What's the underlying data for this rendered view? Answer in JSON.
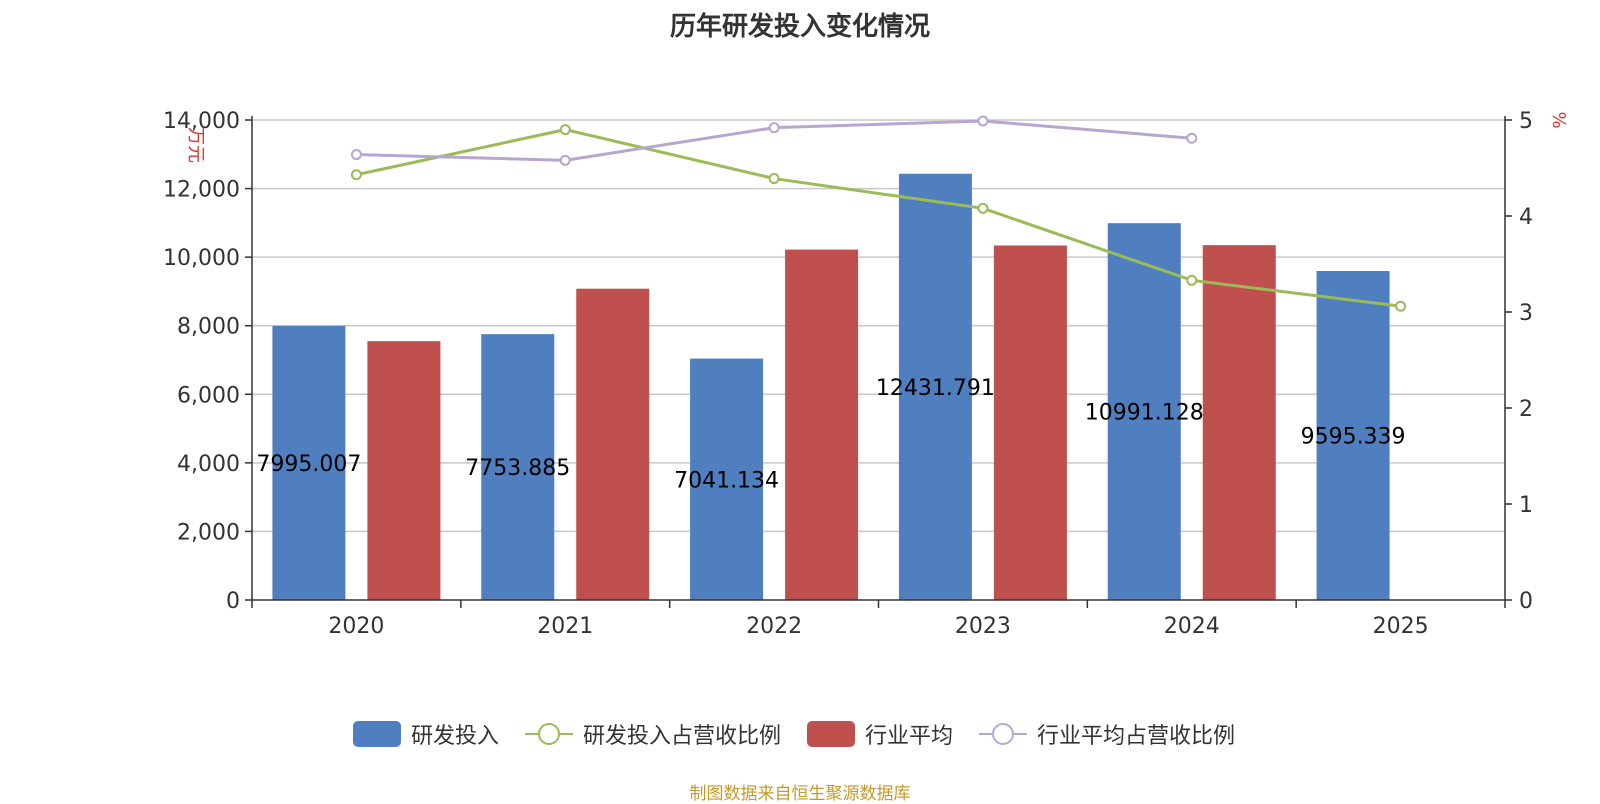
{
  "chart_data": {
    "type": "bar",
    "title": "历年研发投入变化情况",
    "categories": [
      "2020",
      "2021",
      "2022",
      "2023",
      "2024",
      "2025"
    ],
    "y_left": {
      "label": "万元",
      "min": 0,
      "max": 14000,
      "ticks": [
        "0",
        "2,000",
        "4,000",
        "6,000",
        "8,000",
        "10,000",
        "12,000",
        "14,000"
      ]
    },
    "y_right": {
      "label": "%",
      "min": 0,
      "max": 5,
      "ticks": [
        "0",
        "1",
        "2",
        "3",
        "4",
        "5"
      ]
    },
    "grid": true,
    "legend_position": "bottom",
    "series": [
      {
        "name": "研发投入",
        "kind": "bar",
        "axis": "left",
        "color": "#4f7fbe",
        "values": [
          7995.007,
          7753.885,
          7041.134,
          12431.791,
          10991.128,
          9595.339
        ],
        "labels": [
          "7995.007",
          "7753.885",
          "7041.134",
          "12431.791",
          "10991.128",
          "9595.339"
        ]
      },
      {
        "name": "研发投入占营收比例",
        "kind": "line",
        "axis": "right",
        "color": "#9bbb59",
        "values": [
          4.43,
          4.9,
          4.39,
          4.08,
          3.33,
          3.06
        ]
      },
      {
        "name": "行业平均",
        "kind": "bar",
        "axis": "left",
        "color": "#c0504d",
        "values": [
          7550,
          9080,
          10220,
          10340,
          10350,
          null
        ]
      },
      {
        "name": "行业平均占营收比例",
        "kind": "line",
        "axis": "right",
        "color": "#b7a6cf",
        "values": [
          4.64,
          4.58,
          4.92,
          4.99,
          4.81,
          null
        ]
      }
    ],
    "source": "制图数据来自恒生聚源数据库"
  }
}
